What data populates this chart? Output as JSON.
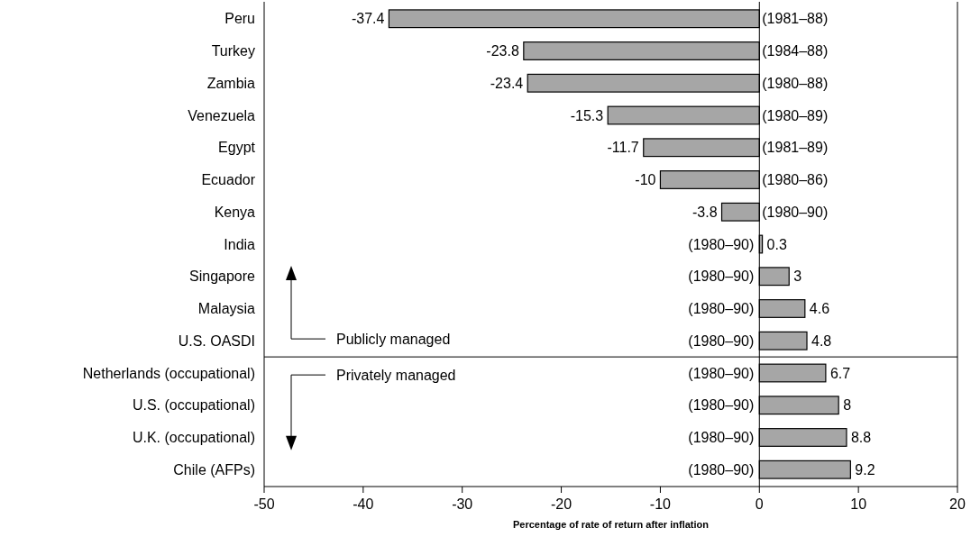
{
  "chart_data": {
    "type": "bar",
    "orientation": "horizontal",
    "xlabel": "Percentage of rate of return after inflation",
    "categories": [
      "Peru",
      "Turkey",
      "Zambia",
      "Venezuela",
      "Egypt",
      "Ecuador",
      "Kenya",
      "India",
      "Singapore",
      "Malaysia",
      "U.S. OASDI",
      "Netherlands (occupational)",
      "U.S. (occupational)",
      "U.K. (occupational)",
      "Chile (AFPs)"
    ],
    "values": [
      -37.4,
      -23.8,
      -23.4,
      -15.3,
      -11.7,
      -10,
      -3.8,
      0.3,
      3,
      4.6,
      4.8,
      6.7,
      8,
      8.8,
      9.2
    ],
    "color": "#a6a6a6",
    "data_labels": true,
    "xlim": [
      -50,
      20
    ],
    "xticks": [
      -50,
      -40,
      -30,
      -20,
      -10,
      0,
      10,
      20
    ],
    "annotations": [
      "(1981–88)",
      "(1984–88)",
      "(1980–88)",
      "(1980–89)",
      "(1981–89)",
      "(1980–86)",
      "(1980–90)",
      "(1980–90)",
      "(1980–90)",
      "(1980–90)",
      "(1980–90)",
      "(1980–90)",
      "(1980–90)",
      "(1980–90)",
      "(1980–90)",
      "Publicly managed",
      "Privately managed"
    ]
  }
}
